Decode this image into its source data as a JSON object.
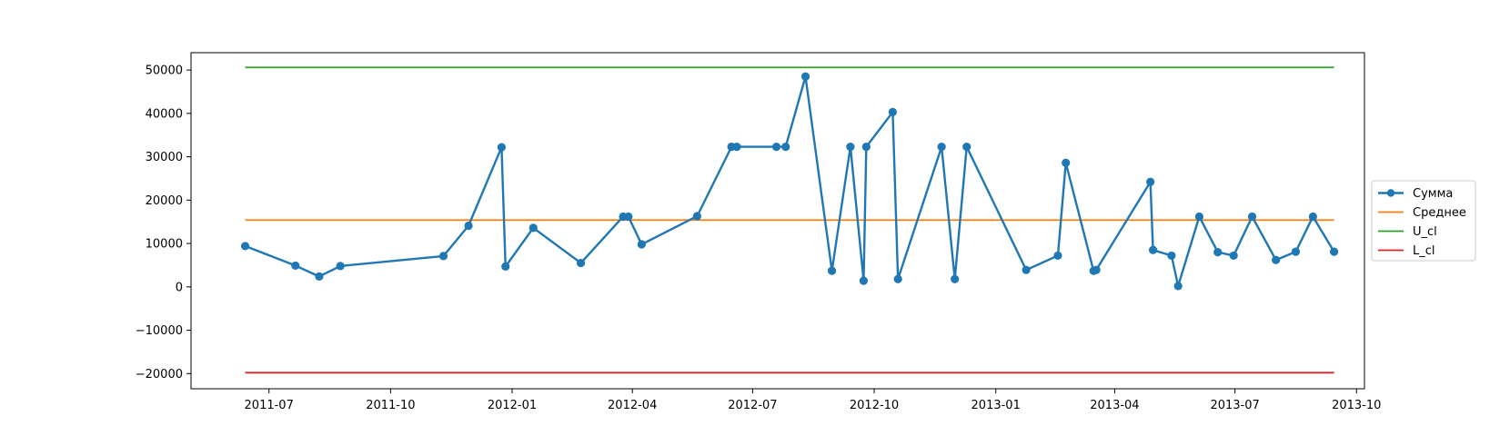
{
  "chart_data": {
    "type": "line",
    "title": "",
    "xlabel": "",
    "ylabel": "",
    "x_axis": {
      "kind": "date",
      "ticks": [
        "2011-07-01",
        "2011-10-01",
        "2012-01-01",
        "2012-04-01",
        "2012-07-01",
        "2012-10-01",
        "2013-01-01",
        "2013-04-01",
        "2013-07-01",
        "2013-10-01"
      ],
      "tick_labels": [
        "2011-07",
        "2011-10",
        "2012-01",
        "2012-04",
        "2012-07",
        "2012-10",
        "2013-01",
        "2013-04",
        "2013-07",
        "2013-10"
      ],
      "range": [
        "2011-05-03",
        "2013-10-07"
      ]
    },
    "y_axis": {
      "ticks": [
        -20000,
        -10000,
        0,
        10000,
        20000,
        30000,
        40000,
        50000
      ],
      "tick_labels": [
        "−20000",
        "−10000",
        "0",
        "10000",
        "20000",
        "30000",
        "40000",
        "50000"
      ],
      "ylim": [
        -23500,
        54000
      ]
    },
    "grid": false,
    "legend": {
      "placement": "right, outside plot, vertically centered"
    },
    "series": [
      {
        "name": "Сумма",
        "style": "line-with-markers",
        "color": "#1f77b4",
        "points": [
          [
            "2011-06-13",
            9400
          ],
          [
            "2011-07-21",
            4900
          ],
          [
            "2011-08-08",
            2400
          ],
          [
            "2011-08-24",
            4800
          ],
          [
            "2011-11-10",
            7100
          ],
          [
            "2011-11-29",
            14100
          ],
          [
            "2011-12-24",
            32200
          ],
          [
            "2011-12-27",
            4700
          ],
          [
            "2012-01-17",
            13600
          ],
          [
            "2012-02-22",
            5500
          ],
          [
            "2012-03-25",
            16200
          ],
          [
            "2012-03-29",
            16200
          ],
          [
            "2012-04-08",
            9800
          ],
          [
            "2012-05-20",
            16300
          ],
          [
            "2012-06-15",
            32300
          ],
          [
            "2012-06-19",
            32300
          ],
          [
            "2012-07-19",
            32300
          ],
          [
            "2012-07-26",
            32300
          ],
          [
            "2012-08-10",
            48500
          ],
          [
            "2012-08-30",
            3700
          ],
          [
            "2012-09-13",
            32300
          ],
          [
            "2012-09-23",
            1400
          ],
          [
            "2012-09-25",
            32300
          ],
          [
            "2012-10-15",
            40300
          ],
          [
            "2012-10-19",
            1800
          ],
          [
            "2012-11-21",
            32300
          ],
          [
            "2012-12-01",
            1800
          ],
          [
            "2012-12-10",
            32300
          ],
          [
            "2013-01-24",
            3900
          ],
          [
            "2013-02-17",
            7200
          ],
          [
            "2013-02-23",
            28600
          ],
          [
            "2013-03-16",
            3700
          ],
          [
            "2013-03-18",
            3900
          ],
          [
            "2013-04-28",
            24200
          ],
          [
            "2013-04-30",
            8500
          ],
          [
            "2013-05-14",
            7200
          ],
          [
            "2013-05-19",
            200
          ],
          [
            "2013-06-04",
            16200
          ],
          [
            "2013-06-18",
            8000
          ],
          [
            "2013-06-30",
            7200
          ],
          [
            "2013-07-14",
            16200
          ],
          [
            "2013-08-01",
            6200
          ],
          [
            "2013-08-16",
            8100
          ],
          [
            "2013-08-29",
            16200
          ],
          [
            "2013-09-14",
            8100
          ]
        ]
      },
      {
        "name": "Среднее",
        "style": "line",
        "color": "#ff7f0e",
        "x": [
          "2011-06-13",
          "2013-09-14"
        ],
        "value": 15400
      },
      {
        "name": "U_cl",
        "style": "line",
        "color": "#2ca02c",
        "x": [
          "2011-06-13",
          "2013-09-14"
        ],
        "value": 50600
      },
      {
        "name": "L_cl",
        "style": "line",
        "color": "#d62728",
        "x": [
          "2011-06-13",
          "2013-09-14"
        ],
        "value": -19800
      }
    ]
  }
}
